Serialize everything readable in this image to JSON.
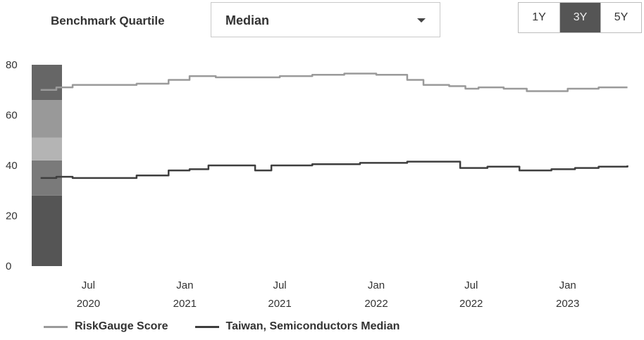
{
  "controls": {
    "quartile_label": "Benchmark Quartile",
    "quartile_value": "Median",
    "ranges": [
      {
        "label": "1Y",
        "active": false
      },
      {
        "label": "3Y",
        "active": true
      },
      {
        "label": "5Y",
        "active": false
      }
    ]
  },
  "colors": {
    "score_line": "#9a9a9a",
    "median_line": "#3e3e3e",
    "band_top": "#666666",
    "band_upper_mid": "#999999",
    "band_middle": "#b4b4b4",
    "band_lower_mid": "#7a7a7a",
    "band_bottom": "#555555"
  },
  "chart_data": {
    "type": "line",
    "y_ticks": [
      0,
      20,
      40,
      60,
      80
    ],
    "ylim": [
      0,
      80
    ],
    "x_ticks": [
      {
        "date": "2020-07-01",
        "label": [
          "Jul",
          "2020"
        ]
      },
      {
        "date": "2021-01-01",
        "label": [
          "Jan",
          "2021"
        ]
      },
      {
        "date": "2021-07-01",
        "label": [
          "Jul",
          "2021"
        ]
      },
      {
        "date": "2022-01-01",
        "label": [
          "Jan",
          "2022"
        ]
      },
      {
        "date": "2022-07-01",
        "label": [
          "Jul",
          "2022"
        ]
      },
      {
        "date": "2023-01-01",
        "label": [
          "Jan",
          "2023"
        ]
      }
    ],
    "xlim": [
      "2020-03-15",
      "2023-05-01"
    ],
    "quartile_bands": [
      {
        "from": 0,
        "to": 28
      },
      {
        "from": 28,
        "to": 42
      },
      {
        "from": 42,
        "to": 51
      },
      {
        "from": 51,
        "to": 66
      },
      {
        "from": 66,
        "to": 80
      }
    ],
    "series": [
      {
        "name": "RiskGauge Score",
        "points": [
          [
            "2020-04-01",
            70
          ],
          [
            "2020-05-01",
            71
          ],
          [
            "2020-06-01",
            72
          ],
          [
            "2020-08-01",
            72
          ],
          [
            "2020-10-01",
            72.5
          ],
          [
            "2020-12-01",
            74
          ],
          [
            "2021-01-10",
            75.5
          ],
          [
            "2021-03-01",
            75
          ],
          [
            "2021-05-01",
            75
          ],
          [
            "2021-07-01",
            75.5
          ],
          [
            "2021-09-01",
            76
          ],
          [
            "2021-11-01",
            76.5
          ],
          [
            "2022-01-01",
            76
          ],
          [
            "2022-03-01",
            74
          ],
          [
            "2022-04-01",
            72
          ],
          [
            "2022-05-20",
            71.5
          ],
          [
            "2022-06-20",
            70.5
          ],
          [
            "2022-07-15",
            71
          ],
          [
            "2022-09-01",
            70.5
          ],
          [
            "2022-10-15",
            69.5
          ],
          [
            "2022-12-01",
            69.5
          ],
          [
            "2023-01-01",
            70.5
          ],
          [
            "2023-03-01",
            71
          ],
          [
            "2023-04-25",
            71
          ]
        ]
      },
      {
        "name": "Taiwan, Semiconductors Median",
        "points": [
          [
            "2020-04-01",
            35
          ],
          [
            "2020-05-01",
            35.5
          ],
          [
            "2020-06-01",
            35
          ],
          [
            "2020-08-01",
            35
          ],
          [
            "2020-10-01",
            36
          ],
          [
            "2020-12-01",
            38
          ],
          [
            "2021-01-10",
            38.5
          ],
          [
            "2021-02-15",
            40
          ],
          [
            "2021-04-01",
            40
          ],
          [
            "2021-05-15",
            38
          ],
          [
            "2021-06-15",
            40
          ],
          [
            "2021-09-01",
            40.5
          ],
          [
            "2021-12-01",
            41
          ],
          [
            "2022-03-01",
            41.5
          ],
          [
            "2022-05-01",
            41.5
          ],
          [
            "2022-06-10",
            39
          ],
          [
            "2022-08-01",
            39.5
          ],
          [
            "2022-10-01",
            38
          ],
          [
            "2022-12-01",
            38.5
          ],
          [
            "2023-01-15",
            39
          ],
          [
            "2023-03-01",
            39.5
          ],
          [
            "2023-04-25",
            40
          ]
        ]
      }
    ]
  }
}
